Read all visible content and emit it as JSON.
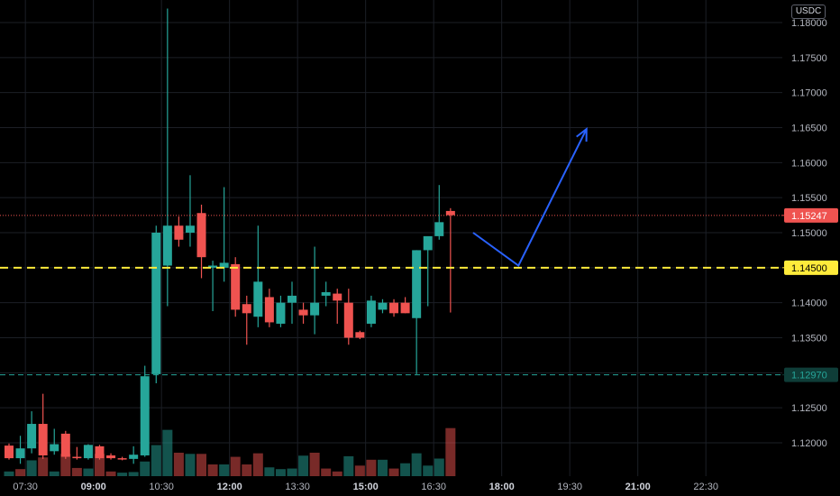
{
  "currency": "USDC",
  "colors": {
    "background": "#000000",
    "up": "#26a69a",
    "down": "#ef5350",
    "grid": "#1c1f26",
    "axis_text": "#b2b5be",
    "support": "#ffeb3b",
    "drawing": "#2962ff"
  },
  "price_labels": {
    "last": "1.15247",
    "support": "1.14500",
    "low_level": "1.12970"
  },
  "chart_data": {
    "type": "candlestick",
    "grid": true,
    "ylim": [
      1.1164,
      1.182
    ],
    "y_ticks": [
      "1.18000",
      "1.17500",
      "1.17000",
      "1.16500",
      "1.16000",
      "1.15500",
      "1.15000",
      "1.14500",
      "1.14000",
      "1.13500",
      "1.13000",
      "1.12500",
      "1.12000"
    ],
    "x_ticks": [
      "07:30",
      "09:00",
      "10:30",
      "12:00",
      "13:30",
      "15:00",
      "16:30",
      "18:00",
      "19:30",
      "21:00",
      "22:30"
    ],
    "bar_minutes": 15,
    "start_time": "07:00",
    "end_time": "23:15",
    "last_price": 1.15247,
    "support_level": 1.145,
    "low_level": 1.1297,
    "candles": [
      {
        "t": "07:00",
        "o": 1.1196,
        "h": 1.1199,
        "l": 1.1176,
        "c": 1.1178
      },
      {
        "t": "07:15",
        "o": 1.1178,
        "h": 1.121,
        "l": 1.117,
        "c": 1.1192
      },
      {
        "t": "07:30",
        "o": 1.1192,
        "h": 1.1245,
        "l": 1.1185,
        "c": 1.1227
      },
      {
        "t": "07:45",
        "o": 1.1227,
        "h": 1.127,
        "l": 1.1177,
        "c": 1.1182
      },
      {
        "t": "08:00",
        "o": 1.1188,
        "h": 1.122,
        "l": 1.1183,
        "c": 1.1198
      },
      {
        "t": "08:15",
        "o": 1.1213,
        "h": 1.1217,
        "l": 1.1177,
        "c": 1.118
      },
      {
        "t": "08:30",
        "o": 1.118,
        "h": 1.1194,
        "l": 1.1176,
        "c": 1.1178
      },
      {
        "t": "08:45",
        "o": 1.1178,
        "h": 1.1198,
        "l": 1.1176,
        "c": 1.1197
      },
      {
        "t": "09:00",
        "o": 1.1195,
        "h": 1.1197,
        "l": 1.1176,
        "c": 1.1178
      },
      {
        "t": "09:15",
        "o": 1.1182,
        "h": 1.1185,
        "l": 1.1176,
        "c": 1.1178
      },
      {
        "t": "09:30",
        "o": 1.1178,
        "h": 1.118,
        "l": 1.1175,
        "c": 1.1177
      },
      {
        "t": "09:45",
        "o": 1.1177,
        "h": 1.1195,
        "l": 1.117,
        "c": 1.1183
      },
      {
        "t": "10:00",
        "o": 1.1182,
        "h": 1.131,
        "l": 1.118,
        "c": 1.1295
      },
      {
        "t": "10:15",
        "o": 1.1298,
        "h": 1.151,
        "l": 1.1285,
        "c": 1.15
      },
      {
        "t": "10:30",
        "o": 1.1453,
        "h": 1.182,
        "l": 1.1395,
        "c": 1.151
      },
      {
        "t": "10:45",
        "o": 1.151,
        "h": 1.1523,
        "l": 1.148,
        "c": 1.149
      },
      {
        "t": "11:00",
        "o": 1.15,
        "h": 1.1582,
        "l": 1.148,
        "c": 1.151
      },
      {
        "t": "11:15",
        "o": 1.1528,
        "h": 1.154,
        "l": 1.1435,
        "c": 1.1465
      },
      {
        "t": "11:30",
        "o": 1.145,
        "h": 1.146,
        "l": 1.1388,
        "c": 1.1453
      },
      {
        "t": "11:45",
        "o": 1.145,
        "h": 1.1565,
        "l": 1.143,
        "c": 1.1457
      },
      {
        "t": "12:00",
        "o": 1.1455,
        "h": 1.1465,
        "l": 1.138,
        "c": 1.139
      },
      {
        "t": "12:15",
        "o": 1.1398,
        "h": 1.141,
        "l": 1.134,
        "c": 1.1385
      },
      {
        "t": "12:30",
        "o": 1.138,
        "h": 1.151,
        "l": 1.1365,
        "c": 1.143
      },
      {
        "t": "12:45",
        "o": 1.1408,
        "h": 1.142,
        "l": 1.1365,
        "c": 1.1372
      },
      {
        "t": "13:00",
        "o": 1.137,
        "h": 1.141,
        "l": 1.1365,
        "c": 1.14
      },
      {
        "t": "13:15",
        "o": 1.14,
        "h": 1.143,
        "l": 1.137,
        "c": 1.141
      },
      {
        "t": "13:30",
        "o": 1.139,
        "h": 1.14,
        "l": 1.137,
        "c": 1.1382
      },
      {
        "t": "13:45",
        "o": 1.1382,
        "h": 1.148,
        "l": 1.1355,
        "c": 1.14
      },
      {
        "t": "14:00",
        "o": 1.141,
        "h": 1.143,
        "l": 1.1395,
        "c": 1.1415
      },
      {
        "t": "14:15",
        "o": 1.1413,
        "h": 1.142,
        "l": 1.137,
        "c": 1.1403
      },
      {
        "t": "14:30",
        "o": 1.14,
        "h": 1.142,
        "l": 1.134,
        "c": 1.135
      },
      {
        "t": "14:45",
        "o": 1.1358,
        "h": 1.136,
        "l": 1.1348,
        "c": 1.135
      },
      {
        "t": "15:00",
        "o": 1.137,
        "h": 1.141,
        "l": 1.1365,
        "c": 1.1403
      },
      {
        "t": "15:15",
        "o": 1.139,
        "h": 1.1405,
        "l": 1.1385,
        "c": 1.14
      },
      {
        "t": "15:30",
        "o": 1.14,
        "h": 1.1405,
        "l": 1.138,
        "c": 1.1385
      },
      {
        "t": "15:45",
        "o": 1.14,
        "h": 1.1408,
        "l": 1.1385,
        "c": 1.1385
      },
      {
        "t": "16:00",
        "o": 1.1378,
        "h": 1.1475,
        "l": 1.1298,
        "c": 1.1475
      },
      {
        "t": "16:15",
        "o": 1.1475,
        "h": 1.149,
        "l": 1.1395,
        "c": 1.1495
      },
      {
        "t": "16:30",
        "o": 1.1495,
        "h": 1.1568,
        "l": 1.149,
        "c": 1.1515
      },
      {
        "t": "16:45",
        "o": 1.1531,
        "h": 1.1535,
        "l": 1.1386,
        "c": 1.1525
      }
    ],
    "volume": [
      {
        "v": 0.08,
        "up": true
      },
      {
        "v": 0.12,
        "up": false
      },
      {
        "v": 0.27,
        "up": true
      },
      {
        "v": 0.32,
        "up": false
      },
      {
        "v": 0.08,
        "up": true
      },
      {
        "v": 0.38,
        "up": false
      },
      {
        "v": 0.14,
        "up": false
      },
      {
        "v": 0.13,
        "up": true
      },
      {
        "v": 0.38,
        "up": false
      },
      {
        "v": 0.08,
        "up": false
      },
      {
        "v": 0.06,
        "up": true
      },
      {
        "v": 0.07,
        "up": true
      },
      {
        "v": 0.25,
        "up": true
      },
      {
        "v": 0.53,
        "up": true
      },
      {
        "v": 0.79,
        "up": true
      },
      {
        "v": 0.4,
        "up": false
      },
      {
        "v": 0.38,
        "up": true
      },
      {
        "v": 0.38,
        "up": false
      },
      {
        "v": 0.2,
        "up": false
      },
      {
        "v": 0.2,
        "up": true
      },
      {
        "v": 0.33,
        "up": false
      },
      {
        "v": 0.2,
        "up": false
      },
      {
        "v": 0.39,
        "up": false
      },
      {
        "v": 0.15,
        "up": true
      },
      {
        "v": 0.12,
        "up": true
      },
      {
        "v": 0.13,
        "up": true
      },
      {
        "v": 0.35,
        "up": true
      },
      {
        "v": 0.4,
        "up": false
      },
      {
        "v": 0.13,
        "up": false
      },
      {
        "v": 0.08,
        "up": false
      },
      {
        "v": 0.34,
        "up": true
      },
      {
        "v": 0.18,
        "up": false
      },
      {
        "v": 0.28,
        "up": false
      },
      {
        "v": 0.28,
        "up": true
      },
      {
        "v": 0.13,
        "up": false
      },
      {
        "v": 0.22,
        "up": true
      },
      {
        "v": 0.39,
        "up": true
      },
      {
        "v": 0.18,
        "up": true
      },
      {
        "v": 0.3,
        "up": true
      },
      {
        "v": 0.82,
        "up": false
      }
    ],
    "drawing": [
      {
        "t": "17:15",
        "p": 1.15
      },
      {
        "t": "18:15",
        "p": 1.1453
      },
      {
        "t": "19:45",
        "p": 1.1648
      }
    ]
  }
}
